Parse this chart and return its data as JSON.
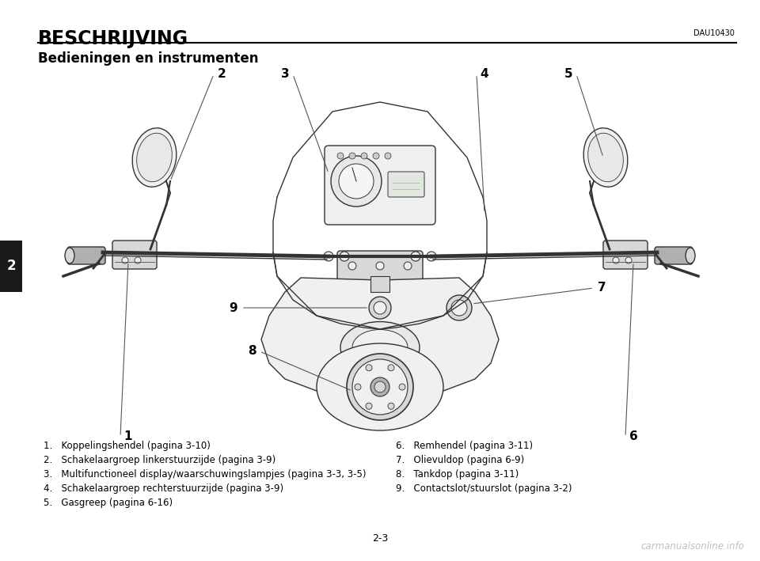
{
  "background_color": "#ffffff",
  "title": "BESCHRIJVING",
  "title_fontsize": 17,
  "subtitle": "Bedieningen en instrumenten",
  "subtitle_fontsize": 12,
  "dau_code": "DAU10430",
  "page_number": "2-3",
  "sidebar_number": "2",
  "sidebar_color": "#1a1a1a",
  "sidebar_text_color": "#ffffff",
  "list_left": [
    "1.   Koppelingshendel (pagina 3-10)",
    "2.   Schakelaargroep linkerstuurzijde (pagina 3-9)",
    "3.   Multifunctioneel display/waarschuwingslampjes (pagina 3-3, 3-5)",
    "4.   Schakelaargroep rechterstuurzijde (pagina 3-9)",
    "5.   Gasgreep (pagina 6-16)"
  ],
  "list_right": [
    "6.   Remhendel (pagina 3-11)",
    "7.   Olievuldop (pagina 6-9)",
    "8.   Tankdop (pagina 3-11)",
    "9.   Contactslot/stuurslot (pagina 3-2)"
  ],
  "watermark": "carmanualsonline.info",
  "watermark_color": "#c0c0c0",
  "line_color": "#333333",
  "fill_light": "#f0f0f0",
  "fill_mid": "#d8d8d8",
  "fill_dark": "#b0b0b0"
}
